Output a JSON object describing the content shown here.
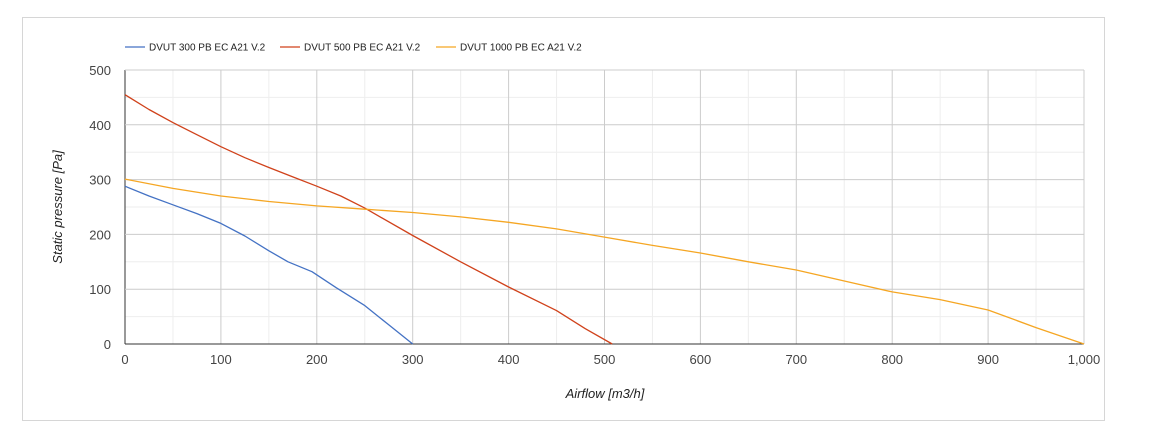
{
  "chart_data": {
    "type": "line",
    "title": "",
    "xlabel": "Airflow [m3/h]",
    "ylabel": "Static pressure [Pa]",
    "xlim": [
      0,
      1000
    ],
    "ylim": [
      0,
      500
    ],
    "x_ticks": [
      0,
      100,
      200,
      300,
      400,
      500,
      600,
      700,
      800,
      900,
      1000
    ],
    "x_tick_labels": [
      "0",
      "100",
      "200",
      "300",
      "400",
      "500",
      "600",
      "700",
      "800",
      "900",
      "1,000"
    ],
    "y_ticks": [
      0,
      100,
      200,
      300,
      400,
      500
    ],
    "y_tick_labels": [
      "0",
      "100",
      "200",
      "300",
      "400",
      "500"
    ],
    "grid": true,
    "minor_grid": true,
    "legend_position": "top-left",
    "series": [
      {
        "name": "DVUT 300 PB EC A21 V.2",
        "color": "#4472c4",
        "x": [
          0,
          25,
          50,
          75,
          100,
          125,
          150,
          170,
          195,
          220,
          250,
          275,
          300
        ],
        "y": [
          288,
          270,
          254,
          238,
          220,
          197,
          170,
          150,
          132,
          103,
          70,
          35,
          0
        ]
      },
      {
        "name": "DVUT 500 PB EC A21 V.2",
        "color": "#d0421b",
        "x": [
          0,
          25,
          50,
          75,
          100,
          125,
          150,
          175,
          200,
          225,
          250,
          300,
          350,
          400,
          450,
          480,
          508
        ],
        "y": [
          455,
          428,
          404,
          382,
          360,
          340,
          322,
          305,
          288,
          270,
          248,
          198,
          150,
          104,
          61,
          28,
          0
        ]
      },
      {
        "name": "DVUT 1000 PB EC A21 V.2",
        "color": "#f5a623",
        "x": [
          0,
          50,
          100,
          150,
          200,
          250,
          300,
          350,
          400,
          450,
          500,
          550,
          600,
          650,
          700,
          750,
          800,
          850,
          900,
          950,
          1000
        ],
        "y": [
          301,
          284,
          270,
          260,
          252,
          246,
          240,
          232,
          222,
          210,
          195,
          180,
          166,
          150,
          135,
          115,
          95,
          81,
          62,
          30,
          0
        ]
      }
    ]
  }
}
